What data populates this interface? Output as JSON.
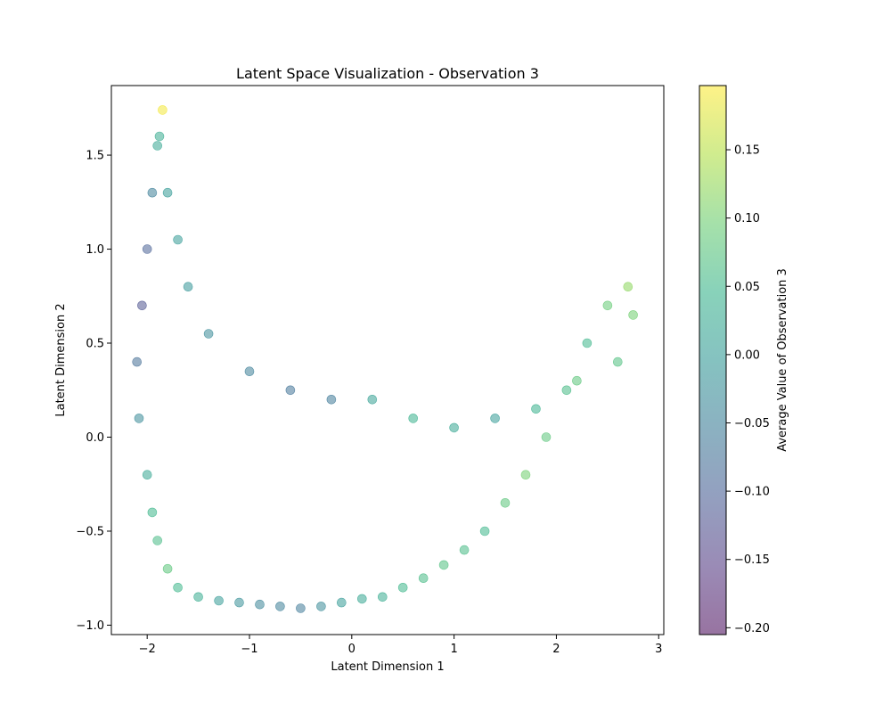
{
  "chart_data": {
    "type": "scatter",
    "title": "Latent Space Visualization - Observation 3",
    "xlabel": "Latent Dimension 1",
    "ylabel": "Latent Dimension 2",
    "xlim": [
      -2.35,
      3.05
    ],
    "ylim": [
      -1.05,
      1.87
    ],
    "xticks": [
      -2,
      -1,
      0,
      1,
      2,
      3
    ],
    "xtick_labels": [
      "−2",
      "−1",
      "0",
      "1",
      "2",
      "3"
    ],
    "yticks": [
      -1.0,
      -0.5,
      0.0,
      0.5,
      1.0,
      1.5
    ],
    "ytick_labels": [
      "−1.0",
      "−0.5",
      "0.0",
      "0.5",
      "1.0",
      "1.5"
    ],
    "grid": false,
    "legend": "none",
    "colormap": "viridis",
    "marker_alpha": 0.5,
    "colorbar": {
      "label": "Average Value of Observation 3",
      "range": [
        -0.205,
        0.197
      ],
      "ticks": [
        -0.2,
        -0.15,
        -0.1,
        -0.05,
        0.0,
        0.05,
        0.1,
        0.15
      ],
      "tick_labels": [
        "−0.20",
        "−0.15",
        "−0.10",
        "−0.05",
        "0.00",
        "0.05",
        "0.10",
        "0.15"
      ]
    },
    "series": [
      {
        "x": [
          -1.85,
          -1.9,
          -1.95,
          -2.0,
          -2.05,
          -2.1,
          -2.08,
          -2.0,
          -1.95,
          -1.9,
          -1.8,
          -1.7,
          -1.5,
          -1.3,
          -1.1,
          -0.9,
          -0.7,
          -0.5,
          -0.3,
          -0.1,
          0.1,
          0.3,
          0.5,
          0.7,
          0.9,
          1.1,
          1.3,
          1.5,
          1.7,
          1.9,
          2.1,
          2.3,
          2.5,
          2.7,
          2.75,
          2.6,
          2.2,
          1.8,
          1.4,
          1.0,
          0.6,
          0.2,
          -0.2,
          -0.6,
          -1.0,
          -1.4,
          -1.6,
          -1.7,
          -1.8,
          -1.88
        ],
        "y": [
          1.74,
          1.55,
          1.3,
          1.0,
          0.7,
          0.4,
          0.1,
          -0.2,
          -0.4,
          -0.55,
          -0.7,
          -0.8,
          -0.85,
          -0.87,
          -0.88,
          -0.89,
          -0.9,
          -0.91,
          -0.9,
          -0.88,
          -0.86,
          -0.85,
          -0.8,
          -0.75,
          -0.68,
          -0.6,
          -0.5,
          -0.35,
          -0.2,
          0.0,
          0.25,
          0.5,
          0.7,
          0.8,
          0.65,
          0.4,
          0.3,
          0.15,
          0.1,
          0.05,
          0.1,
          0.2,
          0.2,
          0.25,
          0.35,
          0.55,
          0.8,
          1.05,
          1.3,
          1.6
        ],
        "c": [
          0.19,
          0.02,
          -0.05,
          -0.1,
          -0.12,
          -0.08,
          -0.03,
          0.02,
          0.05,
          0.06,
          0.08,
          0.05,
          0.03,
          0.0,
          -0.02,
          -0.04,
          -0.05,
          -0.06,
          -0.03,
          0.0,
          0.02,
          0.03,
          0.05,
          0.06,
          0.07,
          0.06,
          0.05,
          0.08,
          0.1,
          0.08,
          0.06,
          0.05,
          0.09,
          0.12,
          0.1,
          0.07,
          0.08,
          0.04,
          0.0,
          0.02,
          0.04,
          0.01,
          -0.06,
          -0.07,
          -0.05,
          -0.03,
          -0.01,
          0.0,
          0.0,
          0.03
        ]
      }
    ]
  }
}
